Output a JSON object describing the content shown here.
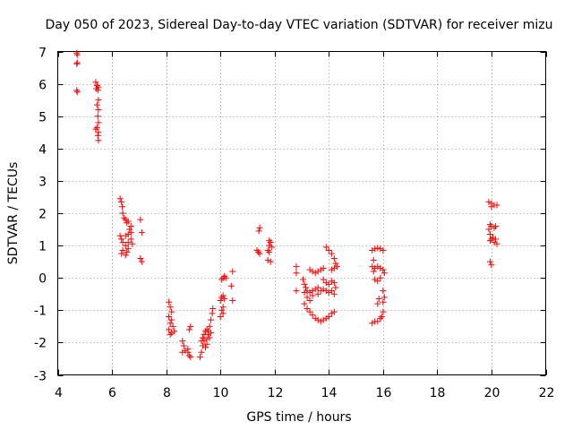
{
  "chart_data": {
    "type": "scatter",
    "title": "Day 050 of 2023, Sidereal Day-to-day VTEC variation (SDTVAR) for receiver mizu",
    "xlabel": "GPS time / hours",
    "ylabel": "SDTVAR / TECUs",
    "xlim": [
      4,
      22
    ],
    "ylim": [
      -3,
      7
    ],
    "xticks": [
      4,
      6,
      8,
      10,
      12,
      14,
      16,
      18,
      20,
      22
    ],
    "yticks": [
      -3,
      -2,
      -1,
      0,
      1,
      2,
      3,
      4,
      5,
      6,
      7
    ],
    "grid": true,
    "marker": "+",
    "color": "#ff0000",
    "series": [
      {
        "name": "SDTVAR",
        "points": [
          [
            4.7,
            6.95
          ],
          [
            4.72,
            6.9
          ],
          [
            4.7,
            6.62
          ],
          [
            4.72,
            6.65
          ],
          [
            4.7,
            5.8
          ],
          [
            4.72,
            5.75
          ],
          [
            5.4,
            6.05
          ],
          [
            5.45,
            5.95
          ],
          [
            5.5,
            5.9
          ],
          [
            5.42,
            5.85
          ],
          [
            5.48,
            5.8
          ],
          [
            5.5,
            5.5
          ],
          [
            5.45,
            5.35
          ],
          [
            5.5,
            5.2
          ],
          [
            5.48,
            5.0
          ],
          [
            5.5,
            4.8
          ],
          [
            5.45,
            4.65
          ],
          [
            5.4,
            4.6
          ],
          [
            5.5,
            4.5
          ],
          [
            5.48,
            4.4
          ],
          [
            5.5,
            4.25
          ],
          [
            6.3,
            2.45
          ],
          [
            6.35,
            2.35
          ],
          [
            6.38,
            2.2
          ],
          [
            6.4,
            2.0
          ],
          [
            6.45,
            1.85
          ],
          [
            6.5,
            1.8
          ],
          [
            6.55,
            1.7
          ],
          [
            6.6,
            1.75
          ],
          [
            6.7,
            1.6
          ],
          [
            6.65,
            1.5
          ],
          [
            6.7,
            1.4
          ],
          [
            6.6,
            1.35
          ],
          [
            6.5,
            1.3
          ],
          [
            6.3,
            1.3
          ],
          [
            6.35,
            1.2
          ],
          [
            6.4,
            1.1
          ],
          [
            6.5,
            1.0
          ],
          [
            6.6,
            1.1
          ],
          [
            6.7,
            1.2
          ],
          [
            6.75,
            1.05
          ],
          [
            6.4,
            0.85
          ],
          [
            6.35,
            0.75
          ],
          [
            6.5,
            0.7
          ],
          [
            6.55,
            0.8
          ],
          [
            6.6,
            0.9
          ],
          [
            7.05,
            1.8
          ],
          [
            7.1,
            1.4
          ],
          [
            7.05,
            0.6
          ],
          [
            7.1,
            0.5
          ],
          [
            8.1,
            -0.75
          ],
          [
            8.15,
            -0.9
          ],
          [
            8.2,
            -1.05
          ],
          [
            8.1,
            -1.2
          ],
          [
            8.2,
            -1.3
          ],
          [
            8.15,
            -1.4
          ],
          [
            8.25,
            -1.5
          ],
          [
            8.1,
            -1.6
          ],
          [
            8.2,
            -1.7
          ],
          [
            8.3,
            -1.65
          ],
          [
            8.15,
            -1.75
          ],
          [
            8.6,
            -1.95
          ],
          [
            8.65,
            -2.1
          ],
          [
            8.7,
            -2.25
          ],
          [
            8.6,
            -2.3
          ],
          [
            8.8,
            -2.3
          ],
          [
            8.85,
            -2.4
          ],
          [
            8.9,
            -2.45
          ],
          [
            8.85,
            -1.6
          ],
          [
            8.9,
            -1.5
          ],
          [
            8.8,
            -2.2
          ],
          [
            9.25,
            -2.45
          ],
          [
            9.3,
            -2.3
          ],
          [
            9.35,
            -2.1
          ],
          [
            9.3,
            -1.95
          ],
          [
            9.35,
            -1.85
          ],
          [
            9.4,
            -1.75
          ],
          [
            9.45,
            -1.65
          ],
          [
            9.5,
            -1.6
          ],
          [
            9.4,
            -1.95
          ],
          [
            9.5,
            -1.9
          ],
          [
            9.55,
            -1.75
          ],
          [
            9.6,
            -1.5
          ],
          [
            9.65,
            -1.3
          ],
          [
            9.7,
            -1.1
          ],
          [
            9.72,
            -0.95
          ],
          [
            9.6,
            -1.85
          ],
          [
            9.55,
            -1.65
          ],
          [
            9.65,
            -1.7
          ],
          [
            9.5,
            -2.05
          ],
          [
            9.45,
            -2.15
          ],
          [
            10.0,
            -1.2
          ],
          [
            10.05,
            -1.0
          ],
          [
            10.1,
            -0.9
          ],
          [
            10.0,
            -0.7
          ],
          [
            10.05,
            -0.6
          ],
          [
            10.1,
            -0.55
          ],
          [
            10.15,
            -0.65
          ],
          [
            10.1,
            -1.1
          ],
          [
            10.05,
            -0.05
          ],
          [
            10.1,
            0.0
          ],
          [
            10.15,
            0.05
          ],
          [
            10.2,
            0.0
          ],
          [
            10.45,
            0.2
          ],
          [
            10.4,
            -0.25
          ],
          [
            10.45,
            -0.7
          ],
          [
            11.35,
            0.85
          ],
          [
            11.4,
            0.8
          ],
          [
            11.45,
            0.75
          ],
          [
            11.42,
            1.45
          ],
          [
            11.45,
            1.55
          ],
          [
            11.75,
            0.85
          ],
          [
            11.8,
            1.0
          ],
          [
            11.85,
            1.1
          ],
          [
            11.8,
            0.8
          ],
          [
            11.75,
            0.55
          ],
          [
            11.85,
            0.5
          ],
          [
            11.8,
            1.15
          ],
          [
            11.9,
            0.95
          ],
          [
            12.8,
            0.35
          ],
          [
            12.8,
            0.15
          ],
          [
            12.8,
            -0.4
          ],
          [
            13.05,
            -0.05
          ],
          [
            13.1,
            -0.2
          ],
          [
            13.15,
            -0.3
          ],
          [
            13.2,
            -0.4
          ],
          [
            13.3,
            -0.45
          ],
          [
            13.4,
            -0.4
          ],
          [
            13.5,
            -0.35
          ],
          [
            13.6,
            -0.3
          ],
          [
            13.1,
            -0.45
          ],
          [
            13.2,
            -0.6
          ],
          [
            13.3,
            -0.7
          ],
          [
            13.4,
            -0.55
          ],
          [
            13.6,
            -0.5
          ],
          [
            13.7,
            -0.4
          ],
          [
            13.8,
            -0.35
          ],
          [
            13.1,
            -0.8
          ],
          [
            13.2,
            -0.95
          ],
          [
            13.3,
            -1.05
          ],
          [
            13.4,
            -1.15
          ],
          [
            13.5,
            -1.25
          ],
          [
            13.6,
            -1.3
          ],
          [
            13.7,
            -1.35
          ],
          [
            13.8,
            -1.3
          ],
          [
            13.9,
            -1.25
          ],
          [
            14.0,
            -1.2
          ],
          [
            14.1,
            -1.1
          ],
          [
            14.2,
            -1.05
          ],
          [
            13.3,
            0.25
          ],
          [
            13.4,
            0.2
          ],
          [
            13.5,
            0.15
          ],
          [
            13.6,
            0.2
          ],
          [
            13.7,
            0.25
          ],
          [
            13.8,
            0.3
          ],
          [
            13.9,
            0.95
          ],
          [
            14.0,
            0.85
          ],
          [
            14.1,
            0.75
          ],
          [
            14.2,
            0.6
          ],
          [
            14.25,
            0.45
          ],
          [
            14.3,
            0.35
          ],
          [
            14.2,
            0.3
          ],
          [
            14.1,
            0.25
          ],
          [
            13.8,
            -0.05
          ],
          [
            13.9,
            -0.15
          ],
          [
            14.0,
            -0.2
          ],
          [
            14.1,
            -0.1
          ],
          [
            14.2,
            -0.15
          ],
          [
            14.25,
            -0.3
          ],
          [
            13.9,
            -0.4
          ],
          [
            14.0,
            -0.45
          ],
          [
            14.1,
            -0.4
          ],
          [
            14.2,
            -0.5
          ],
          [
            15.6,
            0.85
          ],
          [
            15.7,
            0.9
          ],
          [
            15.8,
            0.92
          ],
          [
            15.9,
            0.9
          ],
          [
            16.0,
            0.85
          ],
          [
            15.65,
            0.55
          ],
          [
            15.6,
            0.35
          ],
          [
            15.65,
            0.2
          ],
          [
            15.7,
            0.3
          ],
          [
            15.8,
            0.35
          ],
          [
            15.9,
            0.3
          ],
          [
            16.0,
            0.25
          ],
          [
            16.05,
            0.15
          ],
          [
            15.7,
            -0.05
          ],
          [
            15.8,
            -0.1
          ],
          [
            15.9,
            0.0
          ],
          [
            16.0,
            -0.4
          ],
          [
            16.05,
            -0.6
          ],
          [
            16.0,
            -0.75
          ],
          [
            15.85,
            -0.65
          ],
          [
            15.8,
            -0.8
          ],
          [
            16.0,
            -1.05
          ],
          [
            15.95,
            -1.2
          ],
          [
            15.9,
            -1.25
          ],
          [
            15.8,
            -1.35
          ],
          [
            15.7,
            -1.35
          ],
          [
            15.6,
            -1.4
          ],
          [
            19.9,
            2.35
          ],
          [
            20.0,
            2.3
          ],
          [
            20.1,
            2.25
          ],
          [
            20.2,
            2.25
          ],
          [
            20.0,
            2.2
          ],
          [
            19.95,
            1.65
          ],
          [
            20.0,
            1.6
          ],
          [
            20.1,
            1.55
          ],
          [
            20.15,
            1.6
          ],
          [
            19.9,
            1.5
          ],
          [
            19.95,
            1.35
          ],
          [
            20.0,
            1.2
          ],
          [
            19.95,
            1.15
          ],
          [
            20.05,
            1.25
          ],
          [
            20.1,
            1.1
          ],
          [
            20.2,
            1.05
          ],
          [
            20.15,
            1.2
          ],
          [
            19.95,
            0.5
          ],
          [
            20.0,
            0.4
          ]
        ]
      }
    ]
  }
}
